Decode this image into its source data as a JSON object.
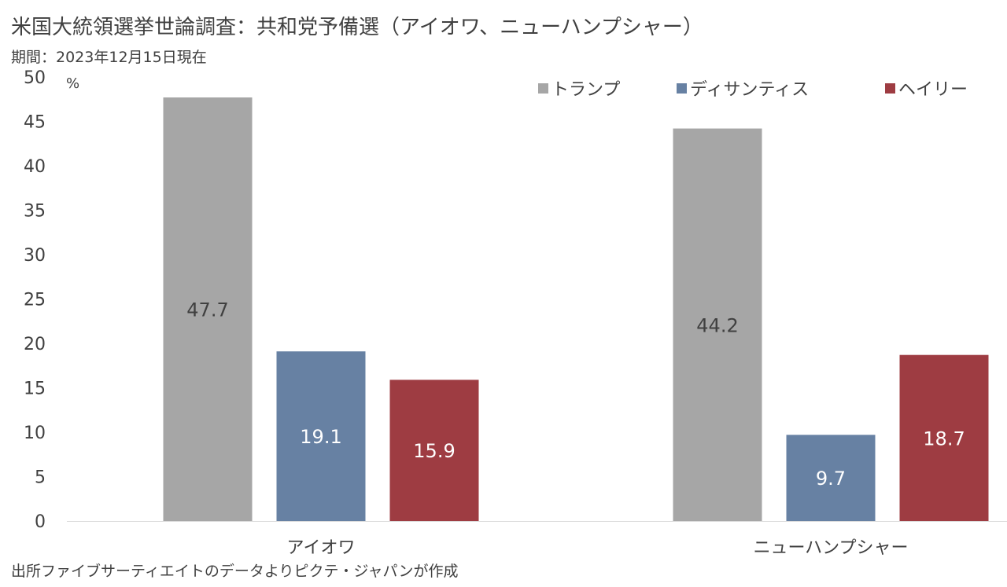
{
  "header": {
    "title": "米国大統領選挙世論調査：共和党予備選（アイオワ、ニューハンプシャー）",
    "subtitle": "期間：2023年12月15日現在"
  },
  "footer": {
    "source": "出所ファイブサーティエイトのデータよりピクテ・ジャパンが作成"
  },
  "colors": {
    "trump": "#a6a6a6",
    "desantis": "#6781a3",
    "haley": "#9e3c42",
    "axis_text": "#404040",
    "label_dark": "#404040",
    "label_light": "#ffffff"
  },
  "chart_data": {
    "type": "bar",
    "categories": [
      "アイオワ",
      "ニューハンプシャー"
    ],
    "series": [
      {
        "name": "トランプ",
        "values": [
          47.7,
          44.2
        ],
        "color": "#a6a6a6",
        "label_color": "#404040"
      },
      {
        "name": "ディサンティス",
        "values": [
          19.1,
          9.7
        ],
        "color": "#6781a3",
        "label_color": "#ffffff"
      },
      {
        "name": "ヘイリー",
        "values": [
          15.9,
          18.7
        ],
        "color": "#9e3c42",
        "label_color": "#ffffff"
      }
    ],
    "ylim": [
      0,
      50
    ],
    "yticks": [
      0,
      5,
      10,
      15,
      20,
      25,
      30,
      35,
      40,
      45,
      50
    ],
    "yunit": "%",
    "legend_position": "top-right",
    "grid": false
  }
}
